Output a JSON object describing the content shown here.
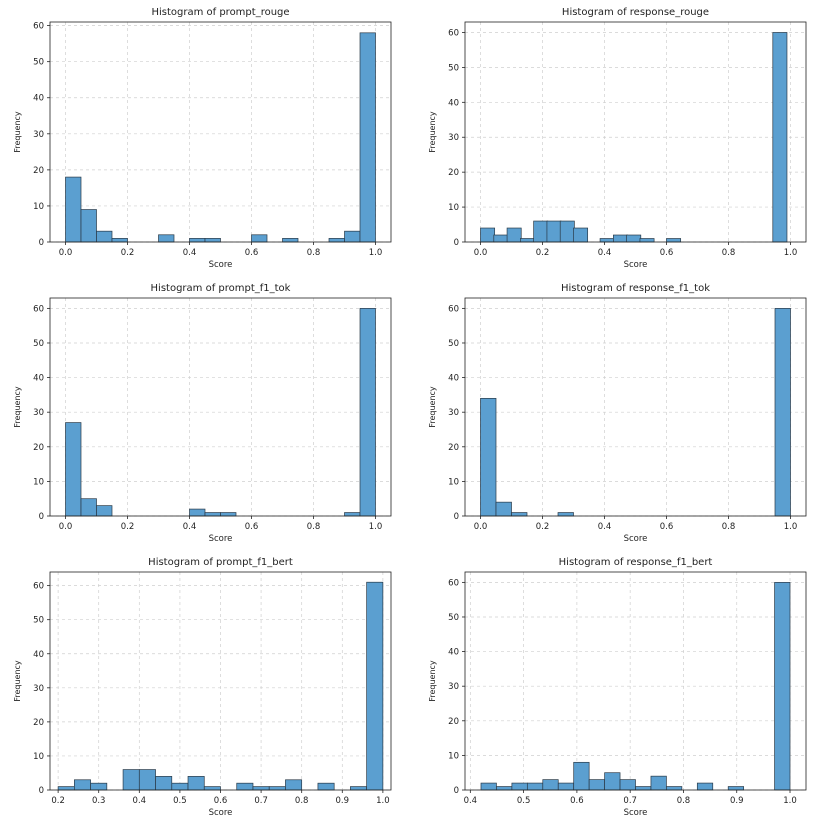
{
  "chart_data": [
    {
      "type": "bar",
      "title": "Histogram of prompt_rouge",
      "xlabel": "Score",
      "ylabel": "Frequency",
      "xlim": [
        -0.05,
        1.05
      ],
      "ylim": [
        0,
        61
      ],
      "xticks": [
        0.0,
        0.2,
        0.4,
        0.6,
        0.8,
        1.0
      ],
      "xtick_labels": [
        "0.0",
        "0.2",
        "0.4",
        "0.6",
        "0.8",
        "1.0"
      ],
      "yticks": [
        0,
        10,
        20,
        30,
        40,
        50,
        60
      ],
      "bin_edges": [
        0.0,
        0.05,
        0.1,
        0.15,
        0.2,
        0.25,
        0.3,
        0.35,
        0.4,
        0.45,
        0.5,
        0.55,
        0.6,
        0.65,
        0.7,
        0.75,
        0.8,
        0.85,
        0.9,
        0.95,
        1.0
      ],
      "values": [
        18,
        9,
        3,
        1,
        0,
        0,
        2,
        0,
        1,
        1,
        0,
        0,
        2,
        0,
        1,
        0,
        0,
        1,
        3,
        58
      ],
      "color": "#5b9fd0",
      "grid": true
    },
    {
      "type": "bar",
      "title": "Histogram of response_rouge",
      "xlabel": "Score",
      "ylabel": "Frequency",
      "xlim": [
        -0.05,
        1.05
      ],
      "ylim": [
        0,
        63
      ],
      "xticks": [
        0.0,
        0.2,
        0.4,
        0.6,
        0.8,
        1.0
      ],
      "xtick_labels": [
        "0.0",
        "0.2",
        "0.4",
        "0.6",
        "0.8",
        "1.0"
      ],
      "yticks": [
        0,
        10,
        20,
        30,
        40,
        50,
        60
      ],
      "bin_edges": [
        0.0,
        0.0429,
        0.0857,
        0.1286,
        0.1714,
        0.2143,
        0.2571,
        0.3,
        0.3429,
        0.3857,
        0.4286,
        0.4714,
        0.5143,
        0.5571,
        0.6,
        0.6429,
        0.6857,
        0.7286,
        0.7714,
        0.8143,
        0.8571,
        0.9,
        0.9429,
        0.9857
      ],
      "bin_width": 0.0457,
      "values": [
        4,
        2,
        4,
        1,
        6,
        6,
        6,
        4,
        0,
        1,
        2,
        2,
        1,
        0,
        1,
        0,
        0,
        0,
        0,
        0,
        0,
        0,
        60
      ],
      "color": "#5b9fd0",
      "grid": true
    },
    {
      "type": "bar",
      "title": "Histogram of prompt_f1_tok",
      "xlabel": "Score",
      "ylabel": "Frequency",
      "xlim": [
        -0.05,
        1.05
      ],
      "ylim": [
        0,
        63
      ],
      "xticks": [
        0.0,
        0.2,
        0.4,
        0.6,
        0.8,
        1.0
      ],
      "xtick_labels": [
        "0.0",
        "0.2",
        "0.4",
        "0.6",
        "0.8",
        "1.0"
      ],
      "yticks": [
        0,
        10,
        20,
        30,
        40,
        50,
        60
      ],
      "bin_edges": [
        0.0,
        0.05,
        0.1,
        0.15,
        0.2,
        0.25,
        0.3,
        0.35,
        0.4,
        0.45,
        0.5,
        0.55,
        0.6,
        0.65,
        0.7,
        0.75,
        0.8,
        0.85,
        0.9,
        0.95,
        1.0
      ],
      "values": [
        27,
        5,
        3,
        0,
        0,
        0,
        0,
        0,
        2,
        1,
        1,
        0,
        0,
        0,
        0,
        0,
        0,
        0,
        1,
        60
      ],
      "color": "#5b9fd0",
      "grid": true
    },
    {
      "type": "bar",
      "title": "Histogram of response_f1_tok",
      "xlabel": "Score",
      "ylabel": "Frequency",
      "xlim": [
        -0.05,
        1.05
      ],
      "ylim": [
        0,
        63
      ],
      "xticks": [
        0.0,
        0.2,
        0.4,
        0.6,
        0.8,
        1.0
      ],
      "xtick_labels": [
        "0.0",
        "0.2",
        "0.4",
        "0.6",
        "0.8",
        "1.0"
      ],
      "yticks": [
        0,
        10,
        20,
        30,
        40,
        50,
        60
      ],
      "bin_edges": [
        0.0,
        0.05,
        0.1,
        0.15,
        0.2,
        0.25,
        0.3,
        0.35,
        0.4,
        0.45,
        0.5,
        0.55,
        0.6,
        0.65,
        0.7,
        0.75,
        0.8,
        0.85,
        0.9,
        0.95,
        1.0
      ],
      "values": [
        34,
        4,
        1,
        0,
        0,
        1,
        0,
        0,
        0,
        0,
        0,
        0,
        0,
        0,
        0,
        0,
        0,
        0,
        0,
        60
      ],
      "color": "#5b9fd0",
      "grid": true
    },
    {
      "type": "bar",
      "title": "Histogram of prompt_f1_bert",
      "xlabel": "Score",
      "ylabel": "Frequency",
      "xlim": [
        0.18,
        1.02
      ],
      "ylim": [
        0,
        64
      ],
      "xticks": [
        0.2,
        0.3,
        0.4,
        0.5,
        0.6,
        0.7,
        0.8,
        0.9,
        1.0
      ],
      "xtick_labels": [
        "0.2",
        "0.3",
        "0.4",
        "0.5",
        "0.6",
        "0.7",
        "0.8",
        "0.9",
        "1.0"
      ],
      "yticks": [
        0,
        10,
        20,
        30,
        40,
        50,
        60
      ],
      "bin_edges": [
        0.2,
        0.24,
        0.28,
        0.32,
        0.36,
        0.4,
        0.44,
        0.48,
        0.52,
        0.56,
        0.6,
        0.64,
        0.68,
        0.72,
        0.76,
        0.8,
        0.84,
        0.88,
        0.92,
        0.96,
        1.0
      ],
      "values": [
        1,
        3,
        2,
        0,
        6,
        6,
        4,
        2,
        4,
        1,
        0,
        2,
        1,
        1,
        3,
        0,
        2,
        0,
        1,
        61
      ],
      "color": "#5b9fd0",
      "grid": true
    },
    {
      "type": "bar",
      "title": "Histogram of response_f1_bert",
      "xlabel": "Score",
      "ylabel": "Frequency",
      "xlim": [
        0.39,
        1.03
      ],
      "ylim": [
        0,
        63
      ],
      "xticks": [
        0.4,
        0.5,
        0.6,
        0.7,
        0.8,
        0.9,
        1.0
      ],
      "xtick_labels": [
        "0.4",
        "0.5",
        "0.6",
        "0.7",
        "0.8",
        "0.9",
        "1.0"
      ],
      "yticks": [
        0,
        10,
        20,
        30,
        40,
        50,
        60
      ],
      "bin_edges": [
        0.42,
        0.449,
        0.478,
        0.507,
        0.536,
        0.565,
        0.594,
        0.623,
        0.652,
        0.681,
        0.71,
        0.739,
        0.768,
        0.797,
        0.826,
        0.855,
        0.884,
        0.913,
        0.942,
        0.971,
        1.0
      ],
      "values": [
        2,
        1,
        2,
        2,
        3,
        2,
        8,
        3,
        5,
        3,
        1,
        4,
        1,
        0,
        2,
        0,
        1,
        0,
        0,
        60
      ],
      "color": "#5b9fd0",
      "grid": true
    }
  ]
}
